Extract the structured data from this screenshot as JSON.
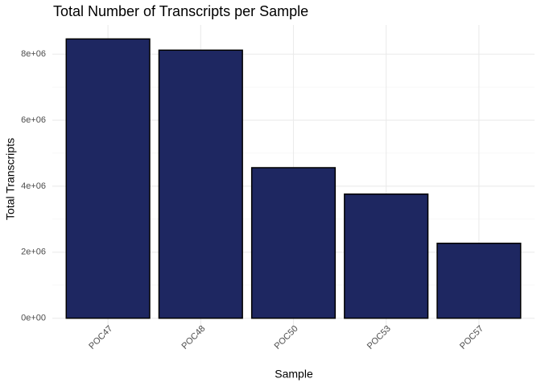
{
  "chart_data": {
    "type": "bar",
    "title": "Total Number of Transcripts per Sample",
    "x_label": "Sample",
    "y_label": "Total Transcripts",
    "categories": [
      "POC47",
      "POC48",
      "POC50",
      "POC53",
      "POC57"
    ],
    "values": [
      8460000,
      8120000,
      4560000,
      3760000,
      2270000
    ],
    "color": "#1e2761",
    "edge_color": "#000000",
    "ylim": [
      -423000,
      8883000
    ],
    "yticks": [
      {
        "value": 0,
        "label": "0e+00"
      },
      {
        "value": 2000000,
        "label": "2e+06"
      },
      {
        "value": 4000000,
        "label": "4e+06"
      },
      {
        "value": 6000000,
        "label": "6e+06"
      },
      {
        "value": 8000000,
        "label": "8e+06"
      }
    ],
    "minor_yticks": [
      1000000,
      3000000,
      5000000,
      7000000
    ],
    "grid": true
  }
}
